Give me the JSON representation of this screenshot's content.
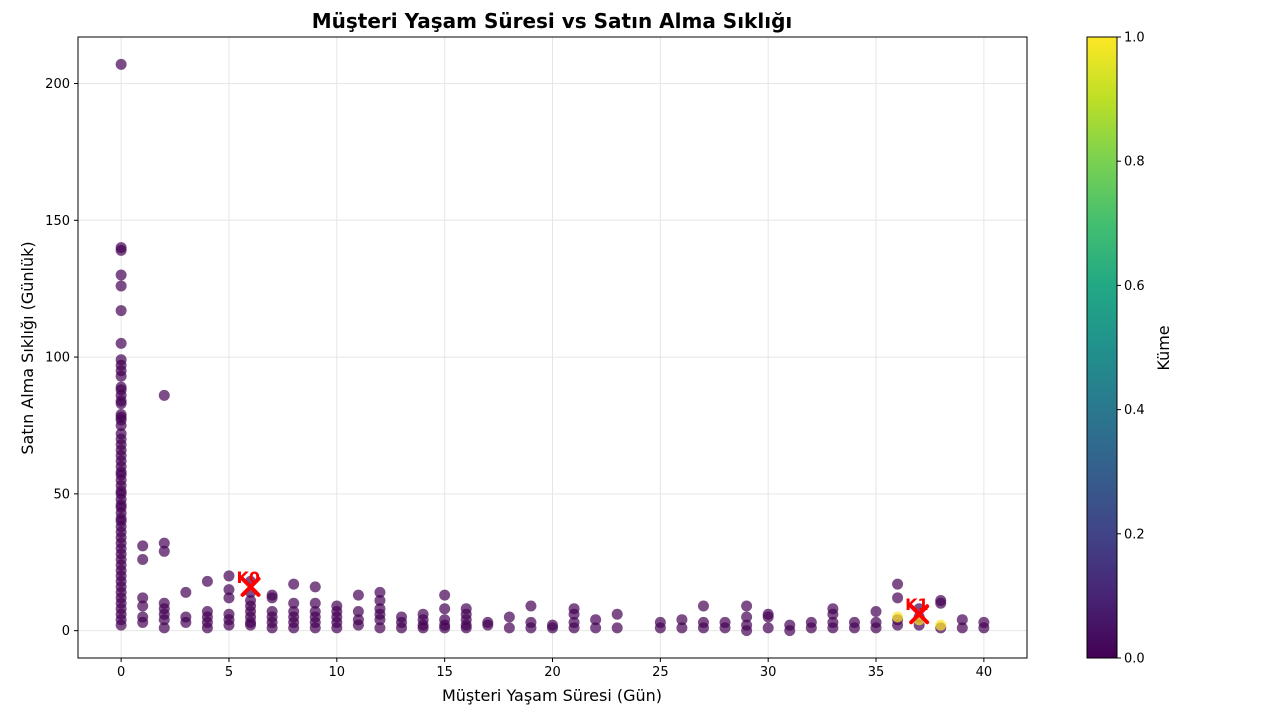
{
  "chart_data": {
    "type": "scatter",
    "title": "Müşteri Yaşam Süresi vs Satın Alma Sıklığı",
    "xlabel": "Müşteri Yaşam Süresi (Gün)",
    "ylabel": "Satın Alma Sıklığı (Günlük)",
    "xlim": [
      -2,
      42
    ],
    "ylim": [
      -10,
      217
    ],
    "xticks": [
      0,
      5,
      10,
      15,
      20,
      25,
      30,
      35,
      40
    ],
    "yticks": [
      0,
      50,
      100,
      150,
      200
    ],
    "grid": true,
    "colors": {
      "cluster_0": "#440154",
      "cluster_1": "#fde725",
      "centroid": "#ff0000"
    },
    "colorbar": {
      "label": "Küme",
      "ticks": [
        "0.0",
        "0.2",
        "0.4",
        "0.6",
        "0.8",
        "1.0"
      ],
      "colormap": "viridis"
    },
    "series": [
      {
        "cluster": 0,
        "points": [
          [
            0,
            207
          ],
          [
            0,
            140
          ],
          [
            0,
            139
          ],
          [
            0,
            130
          ],
          [
            0,
            126
          ],
          [
            0,
            117
          ],
          [
            0,
            105
          ],
          [
            0,
            99
          ],
          [
            0,
            97
          ],
          [
            0,
            95
          ],
          [
            0,
            93
          ],
          [
            0,
            89
          ],
          [
            0,
            88
          ],
          [
            0,
            86
          ],
          [
            0,
            84
          ],
          [
            0,
            83
          ],
          [
            0,
            79
          ],
          [
            0,
            78
          ],
          [
            0,
            77
          ],
          [
            0,
            75
          ],
          [
            0,
            72
          ],
          [
            0,
            70
          ],
          [
            0,
            68
          ],
          [
            0,
            66
          ],
          [
            0,
            64
          ],
          [
            0,
            62
          ],
          [
            0,
            60
          ],
          [
            0,
            58
          ],
          [
            0,
            57
          ],
          [
            0,
            55
          ],
          [
            0,
            53
          ],
          [
            0,
            51
          ],
          [
            0,
            50
          ],
          [
            0,
            48
          ],
          [
            0,
            46
          ],
          [
            0,
            45
          ],
          [
            0,
            43
          ],
          [
            0,
            41
          ],
          [
            0,
            40
          ],
          [
            0,
            38
          ],
          [
            0,
            36
          ],
          [
            0,
            34
          ],
          [
            0,
            32
          ],
          [
            0,
            30
          ],
          [
            0,
            28
          ],
          [
            0,
            26
          ],
          [
            0,
            24
          ],
          [
            0,
            22
          ],
          [
            0,
            20
          ],
          [
            0,
            18
          ],
          [
            0,
            16
          ],
          [
            0,
            14
          ],
          [
            0,
            12
          ],
          [
            0,
            10
          ],
          [
            0,
            8
          ],
          [
            0,
            6
          ],
          [
            0,
            4
          ],
          [
            0,
            2
          ],
          [
            1,
            31
          ],
          [
            1,
            26
          ],
          [
            1,
            12
          ],
          [
            1,
            9
          ],
          [
            1,
            5
          ],
          [
            1,
            3
          ],
          [
            2,
            86
          ],
          [
            2,
            32
          ],
          [
            2,
            29
          ],
          [
            2,
            10
          ],
          [
            2,
            8
          ],
          [
            2,
            6
          ],
          [
            2,
            4
          ],
          [
            2,
            1
          ],
          [
            3,
            14
          ],
          [
            3,
            5
          ],
          [
            3,
            3
          ],
          [
            4,
            18
          ],
          [
            4,
            7
          ],
          [
            4,
            5
          ],
          [
            4,
            3
          ],
          [
            4,
            1
          ],
          [
            5,
            20
          ],
          [
            5,
            15
          ],
          [
            5,
            12
          ],
          [
            5,
            6
          ],
          [
            5,
            4
          ],
          [
            5,
            2
          ],
          [
            6,
            18
          ],
          [
            6,
            14
          ],
          [
            6,
            11
          ],
          [
            6,
            9
          ],
          [
            6,
            7
          ],
          [
            6,
            5
          ],
          [
            6,
            3
          ],
          [
            6,
            2
          ],
          [
            7,
            13
          ],
          [
            7,
            12
          ],
          [
            7,
            7
          ],
          [
            7,
            5
          ],
          [
            7,
            3
          ],
          [
            7,
            1
          ],
          [
            8,
            17
          ],
          [
            8,
            10
          ],
          [
            8,
            7
          ],
          [
            8,
            5
          ],
          [
            8,
            3
          ],
          [
            8,
            1
          ],
          [
            9,
            16
          ],
          [
            9,
            10
          ],
          [
            9,
            7
          ],
          [
            9,
            5
          ],
          [
            9,
            3
          ],
          [
            9,
            1
          ],
          [
            10,
            9
          ],
          [
            10,
            7
          ],
          [
            10,
            5
          ],
          [
            10,
            3
          ],
          [
            10,
            1
          ],
          [
            11,
            13
          ],
          [
            11,
            7
          ],
          [
            11,
            4
          ],
          [
            11,
            2
          ],
          [
            12,
            14
          ],
          [
            12,
            11
          ],
          [
            12,
            8
          ],
          [
            12,
            6
          ],
          [
            12,
            4
          ],
          [
            12,
            1
          ],
          [
            13,
            5
          ],
          [
            13,
            3
          ],
          [
            13,
            1
          ],
          [
            14,
            6
          ],
          [
            14,
            4
          ],
          [
            14,
            2
          ],
          [
            14,
            1
          ],
          [
            15,
            13
          ],
          [
            15,
            8
          ],
          [
            15,
            4
          ],
          [
            15,
            2
          ],
          [
            15,
            1
          ],
          [
            16,
            8
          ],
          [
            16,
            6
          ],
          [
            16,
            4
          ],
          [
            16,
            2
          ],
          [
            16,
            1
          ],
          [
            17,
            3
          ],
          [
            17,
            2
          ],
          [
            18,
            5
          ],
          [
            18,
            1
          ],
          [
            19,
            9
          ],
          [
            19,
            3
          ],
          [
            19,
            1
          ],
          [
            20,
            2
          ],
          [
            20,
            1
          ],
          [
            21,
            8
          ],
          [
            21,
            6
          ],
          [
            21,
            3
          ],
          [
            21,
            1
          ],
          [
            22,
            4
          ],
          [
            22,
            1
          ],
          [
            23,
            6
          ],
          [
            23,
            1
          ],
          [
            25,
            3
          ],
          [
            25,
            1
          ],
          [
            26,
            4
          ],
          [
            26,
            1
          ],
          [
            27,
            9
          ],
          [
            27,
            3
          ],
          [
            27,
            1
          ],
          [
            28,
            3
          ],
          [
            28,
            1
          ],
          [
            29,
            9
          ],
          [
            29,
            5
          ],
          [
            29,
            2
          ],
          [
            29,
            0
          ],
          [
            30,
            6
          ],
          [
            30,
            5
          ],
          [
            30,
            1
          ],
          [
            31,
            2
          ],
          [
            31,
            0
          ],
          [
            32,
            3
          ],
          [
            32,
            1
          ],
          [
            33,
            8
          ],
          [
            33,
            6
          ],
          [
            33,
            3
          ],
          [
            33,
            1
          ],
          [
            34,
            3
          ],
          [
            34,
            1
          ],
          [
            35,
            7
          ],
          [
            35,
            3
          ],
          [
            35,
            1
          ],
          [
            36,
            17
          ],
          [
            36,
            12
          ],
          [
            36,
            4
          ],
          [
            36,
            2
          ],
          [
            37,
            8
          ],
          [
            37,
            5
          ],
          [
            37,
            2
          ],
          [
            38,
            11
          ],
          [
            38,
            10
          ],
          [
            38,
            1
          ],
          [
            39,
            4
          ],
          [
            39,
            1
          ],
          [
            40,
            3
          ],
          [
            40,
            1
          ]
        ]
      },
      {
        "cluster": 1,
        "points": [
          [
            36,
            5
          ],
          [
            37,
            4
          ],
          [
            38,
            2
          ]
        ]
      }
    ],
    "centroids": [
      {
        "label": "K0",
        "x": 6,
        "y": 16
      },
      {
        "label": "K1",
        "x": 37,
        "y": 6
      }
    ]
  }
}
